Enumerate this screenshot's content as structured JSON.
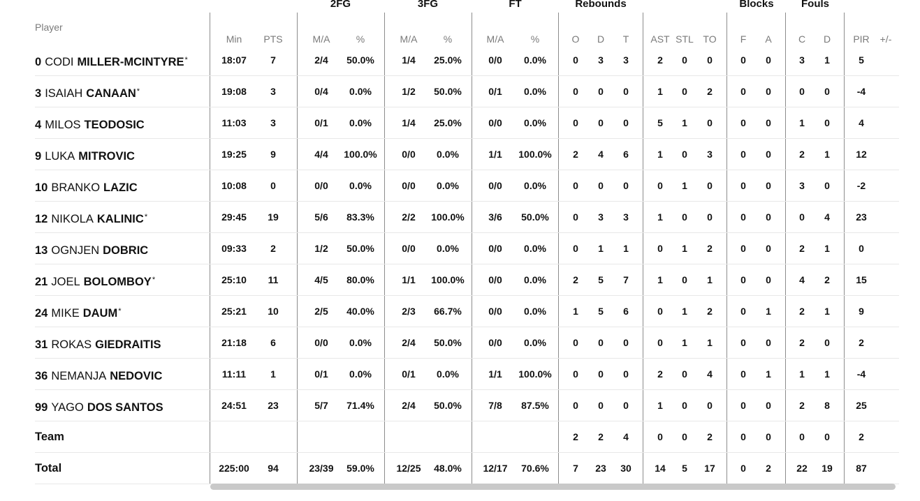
{
  "groups": {
    "fg2": "2FG",
    "fg3": "3FG",
    "ft": "FT",
    "rebounds": "Rebounds",
    "blocks": "Blocks",
    "fouls": "Fouls"
  },
  "headers": {
    "player": "Player",
    "min": "Min",
    "pts": "PTS",
    "fg2_ma": "M/A",
    "fg2_pct": "%",
    "fg3_ma": "M/A",
    "fg3_pct": "%",
    "ft_ma": "M/A",
    "ft_pct": "%",
    "reb_o": "O",
    "reb_d": "D",
    "reb_t": "T",
    "ast": "AST",
    "stl": "STL",
    "to": "TO",
    "blk_f": "F",
    "blk_a": "A",
    "foul_c": "C",
    "foul_d": "D",
    "pir": "PIR",
    "plusminus": "+/-"
  },
  "players": [
    {
      "number": "0",
      "first": "CODI",
      "last": "MILLER-MCINTYRE",
      "starter": "*",
      "stats": {
        "min": "18:07",
        "pts": "7",
        "fg2_ma": "2/4",
        "fg2_pct": "50.0%",
        "fg3_ma": "1/4",
        "fg3_pct": "25.0%",
        "ft_ma": "0/0",
        "ft_pct": "0.0%",
        "reb_o": "0",
        "reb_d": "3",
        "reb_t": "3",
        "ast": "2",
        "stl": "0",
        "to": "0",
        "blk_f": "0",
        "blk_a": "0",
        "foul_c": "3",
        "foul_d": "1",
        "pir": "5",
        "plusminus": ""
      }
    },
    {
      "number": "3",
      "first": "ISAIAH",
      "last": "CANAAN",
      "starter": "*",
      "stats": {
        "min": "19:08",
        "pts": "3",
        "fg2_ma": "0/4",
        "fg2_pct": "0.0%",
        "fg3_ma": "1/2",
        "fg3_pct": "50.0%",
        "ft_ma": "0/1",
        "ft_pct": "0.0%",
        "reb_o": "0",
        "reb_d": "0",
        "reb_t": "0",
        "ast": "1",
        "stl": "0",
        "to": "2",
        "blk_f": "0",
        "blk_a": "0",
        "foul_c": "0",
        "foul_d": "0",
        "pir": "-4",
        "plusminus": ""
      }
    },
    {
      "number": "4",
      "first": "MILOS",
      "last": "TEODOSIC",
      "starter": "",
      "stats": {
        "min": "11:03",
        "pts": "3",
        "fg2_ma": "0/1",
        "fg2_pct": "0.0%",
        "fg3_ma": "1/4",
        "fg3_pct": "25.0%",
        "ft_ma": "0/0",
        "ft_pct": "0.0%",
        "reb_o": "0",
        "reb_d": "0",
        "reb_t": "0",
        "ast": "5",
        "stl": "1",
        "to": "0",
        "blk_f": "0",
        "blk_a": "0",
        "foul_c": "1",
        "foul_d": "0",
        "pir": "4",
        "plusminus": ""
      }
    },
    {
      "number": "9",
      "first": "LUKA",
      "last": "MITROVIC",
      "starter": "",
      "stats": {
        "min": "19:25",
        "pts": "9",
        "fg2_ma": "4/4",
        "fg2_pct": "100.0%",
        "fg3_ma": "0/0",
        "fg3_pct": "0.0%",
        "ft_ma": "1/1",
        "ft_pct": "100.0%",
        "reb_o": "2",
        "reb_d": "4",
        "reb_t": "6",
        "ast": "1",
        "stl": "0",
        "to": "3",
        "blk_f": "0",
        "blk_a": "0",
        "foul_c": "2",
        "foul_d": "1",
        "pir": "12",
        "plusminus": ""
      }
    },
    {
      "number": "10",
      "first": "BRANKO",
      "last": "LAZIC",
      "starter": "",
      "stats": {
        "min": "10:08",
        "pts": "0",
        "fg2_ma": "0/0",
        "fg2_pct": "0.0%",
        "fg3_ma": "0/0",
        "fg3_pct": "0.0%",
        "ft_ma": "0/0",
        "ft_pct": "0.0%",
        "reb_o": "0",
        "reb_d": "0",
        "reb_t": "0",
        "ast": "0",
        "stl": "1",
        "to": "0",
        "blk_f": "0",
        "blk_a": "0",
        "foul_c": "3",
        "foul_d": "0",
        "pir": "-2",
        "plusminus": ""
      }
    },
    {
      "number": "12",
      "first": "NIKOLA",
      "last": "KALINIC",
      "starter": "*",
      "stats": {
        "min": "29:45",
        "pts": "19",
        "fg2_ma": "5/6",
        "fg2_pct": "83.3%",
        "fg3_ma": "2/2",
        "fg3_pct": "100.0%",
        "ft_ma": "3/6",
        "ft_pct": "50.0%",
        "reb_o": "0",
        "reb_d": "3",
        "reb_t": "3",
        "ast": "1",
        "stl": "0",
        "to": "0",
        "blk_f": "0",
        "blk_a": "0",
        "foul_c": "0",
        "foul_d": "4",
        "pir": "23",
        "plusminus": ""
      }
    },
    {
      "number": "13",
      "first": "OGNJEN",
      "last": "DOBRIC",
      "starter": "",
      "stats": {
        "min": "09:33",
        "pts": "2",
        "fg2_ma": "1/2",
        "fg2_pct": "50.0%",
        "fg3_ma": "0/0",
        "fg3_pct": "0.0%",
        "ft_ma": "0/0",
        "ft_pct": "0.0%",
        "reb_o": "0",
        "reb_d": "1",
        "reb_t": "1",
        "ast": "0",
        "stl": "1",
        "to": "2",
        "blk_f": "0",
        "blk_a": "0",
        "foul_c": "2",
        "foul_d": "1",
        "pir": "0",
        "plusminus": ""
      }
    },
    {
      "number": "21",
      "first": "JOEL",
      "last": "BOLOMBOY",
      "starter": "*",
      "stats": {
        "min": "25:10",
        "pts": "11",
        "fg2_ma": "4/5",
        "fg2_pct": "80.0%",
        "fg3_ma": "1/1",
        "fg3_pct": "100.0%",
        "ft_ma": "0/0",
        "ft_pct": "0.0%",
        "reb_o": "2",
        "reb_d": "5",
        "reb_t": "7",
        "ast": "1",
        "stl": "0",
        "to": "1",
        "blk_f": "0",
        "blk_a": "0",
        "foul_c": "4",
        "foul_d": "2",
        "pir": "15",
        "plusminus": ""
      }
    },
    {
      "number": "24",
      "first": "MIKE",
      "last": "DAUM",
      "starter": "*",
      "stats": {
        "min": "25:21",
        "pts": "10",
        "fg2_ma": "2/5",
        "fg2_pct": "40.0%",
        "fg3_ma": "2/3",
        "fg3_pct": "66.7%",
        "ft_ma": "0/0",
        "ft_pct": "0.0%",
        "reb_o": "1",
        "reb_d": "5",
        "reb_t": "6",
        "ast": "0",
        "stl": "1",
        "to": "2",
        "blk_f": "0",
        "blk_a": "1",
        "foul_c": "2",
        "foul_d": "1",
        "pir": "9",
        "plusminus": ""
      }
    },
    {
      "number": "31",
      "first": "ROKAS",
      "last": "GIEDRAITIS",
      "starter": "",
      "stats": {
        "min": "21:18",
        "pts": "6",
        "fg2_ma": "0/0",
        "fg2_pct": "0.0%",
        "fg3_ma": "2/4",
        "fg3_pct": "50.0%",
        "ft_ma": "0/0",
        "ft_pct": "0.0%",
        "reb_o": "0",
        "reb_d": "0",
        "reb_t": "0",
        "ast": "0",
        "stl": "1",
        "to": "1",
        "blk_f": "0",
        "blk_a": "0",
        "foul_c": "2",
        "foul_d": "0",
        "pir": "2",
        "plusminus": ""
      }
    },
    {
      "number": "36",
      "first": "NEMANJA",
      "last": "NEDOVIC",
      "starter": "",
      "stats": {
        "min": "11:11",
        "pts": "1",
        "fg2_ma": "0/1",
        "fg2_pct": "0.0%",
        "fg3_ma": "0/1",
        "fg3_pct": "0.0%",
        "ft_ma": "1/1",
        "ft_pct": "100.0%",
        "reb_o": "0",
        "reb_d": "0",
        "reb_t": "0",
        "ast": "2",
        "stl": "0",
        "to": "4",
        "blk_f": "0",
        "blk_a": "1",
        "foul_c": "1",
        "foul_d": "1",
        "pir": "-4",
        "plusminus": ""
      }
    },
    {
      "number": "99",
      "first": "YAGO",
      "last": "DOS SANTOS",
      "starter": "",
      "stats": {
        "min": "24:51",
        "pts": "23",
        "fg2_ma": "5/7",
        "fg2_pct": "71.4%",
        "fg3_ma": "2/4",
        "fg3_pct": "50.0%",
        "ft_ma": "7/8",
        "ft_pct": "87.5%",
        "reb_o": "0",
        "reb_d": "0",
        "reb_t": "0",
        "ast": "1",
        "stl": "0",
        "to": "0",
        "blk_f": "0",
        "blk_a": "0",
        "foul_c": "2",
        "foul_d": "8",
        "pir": "25",
        "plusminus": ""
      }
    }
  ],
  "team": {
    "label": "Team",
    "stats": {
      "min": "",
      "pts": "",
      "fg2_ma": "",
      "fg2_pct": "",
      "fg3_ma": "",
      "fg3_pct": "",
      "ft_ma": "",
      "ft_pct": "",
      "reb_o": "2",
      "reb_d": "2",
      "reb_t": "4",
      "ast": "0",
      "stl": "0",
      "to": "2",
      "blk_f": "0",
      "blk_a": "0",
      "foul_c": "0",
      "foul_d": "0",
      "pir": "2",
      "plusminus": ""
    }
  },
  "total": {
    "label": "Total",
    "stats": {
      "min": "225:00",
      "pts": "94",
      "fg2_ma": "23/39",
      "fg2_pct": "59.0%",
      "fg3_ma": "12/25",
      "fg3_pct": "48.0%",
      "ft_ma": "12/17",
      "ft_pct": "70.6%",
      "reb_o": "7",
      "reb_d": "23",
      "reb_t": "30",
      "ast": "14",
      "stl": "5",
      "to": "17",
      "blk_f": "0",
      "blk_a": "2",
      "foul_c": "22",
      "foul_d": "19",
      "pir": "87",
      "plusminus": ""
    }
  }
}
